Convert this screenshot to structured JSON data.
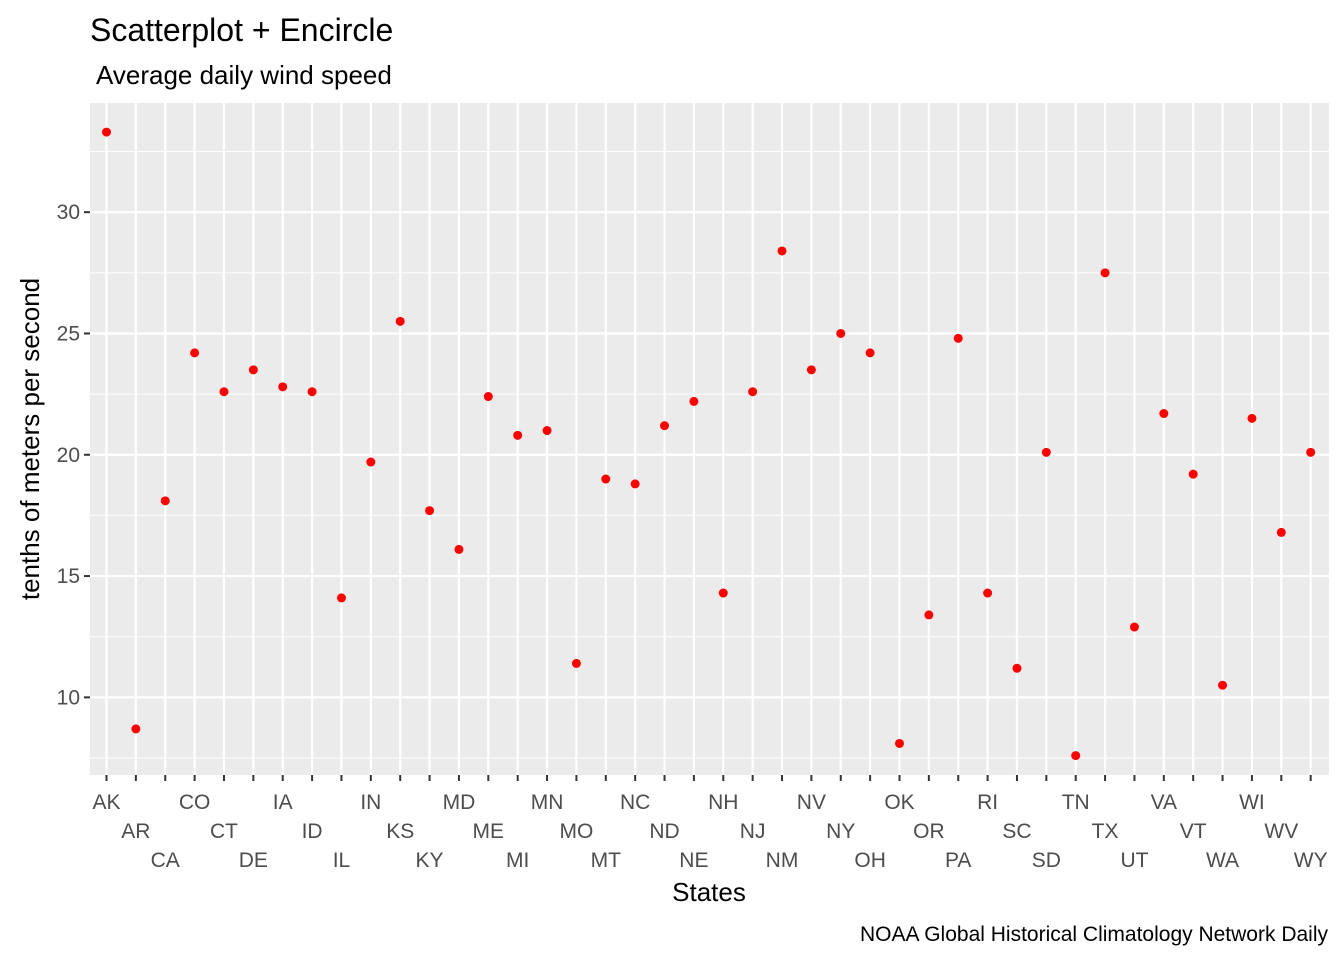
{
  "chart_data": {
    "type": "scatter",
    "title": "Scatterplot + Encircle",
    "subtitle": "Average daily wind speed",
    "xlabel": "States",
    "ylabel": "tenths of meters per second",
    "caption": "NOAA Global Historical Climatology Network Daily",
    "ylim": [
      6.8,
      34.5
    ],
    "yticks": [
      10,
      15,
      20,
      25,
      30
    ],
    "grid": true,
    "point_color": "#ff0000",
    "panel_color": "#ebebeb",
    "categories": [
      "AK",
      "AR",
      "CA",
      "CO",
      "CT",
      "DE",
      "IA",
      "ID",
      "IL",
      "IN",
      "KS",
      "KY",
      "MD",
      "ME",
      "MI",
      "MN",
      "MO",
      "MT",
      "NC",
      "ND",
      "NE",
      "NH",
      "NJ",
      "NM",
      "NV",
      "NY",
      "OH",
      "OK",
      "OR",
      "PA",
      "RI",
      "SC",
      "SD",
      "TN",
      "TX",
      "UT",
      "VA",
      "VT",
      "WA",
      "WI",
      "WV",
      "WY"
    ],
    "values": [
      33.3,
      8.7,
      18.1,
      24.2,
      22.6,
      23.5,
      22.8,
      22.6,
      14.1,
      19.7,
      25.5,
      17.7,
      16.1,
      22.4,
      20.8,
      21.0,
      11.4,
      19.0,
      18.8,
      21.2,
      22.2,
      14.3,
      22.6,
      28.4,
      23.5,
      25.0,
      24.2,
      8.1,
      13.4,
      24.8,
      14.3,
      11.2,
      20.1,
      7.6,
      27.5,
      12.9,
      21.7,
      19.2,
      10.5,
      21.5,
      16.8,
      20.1
    ]
  }
}
